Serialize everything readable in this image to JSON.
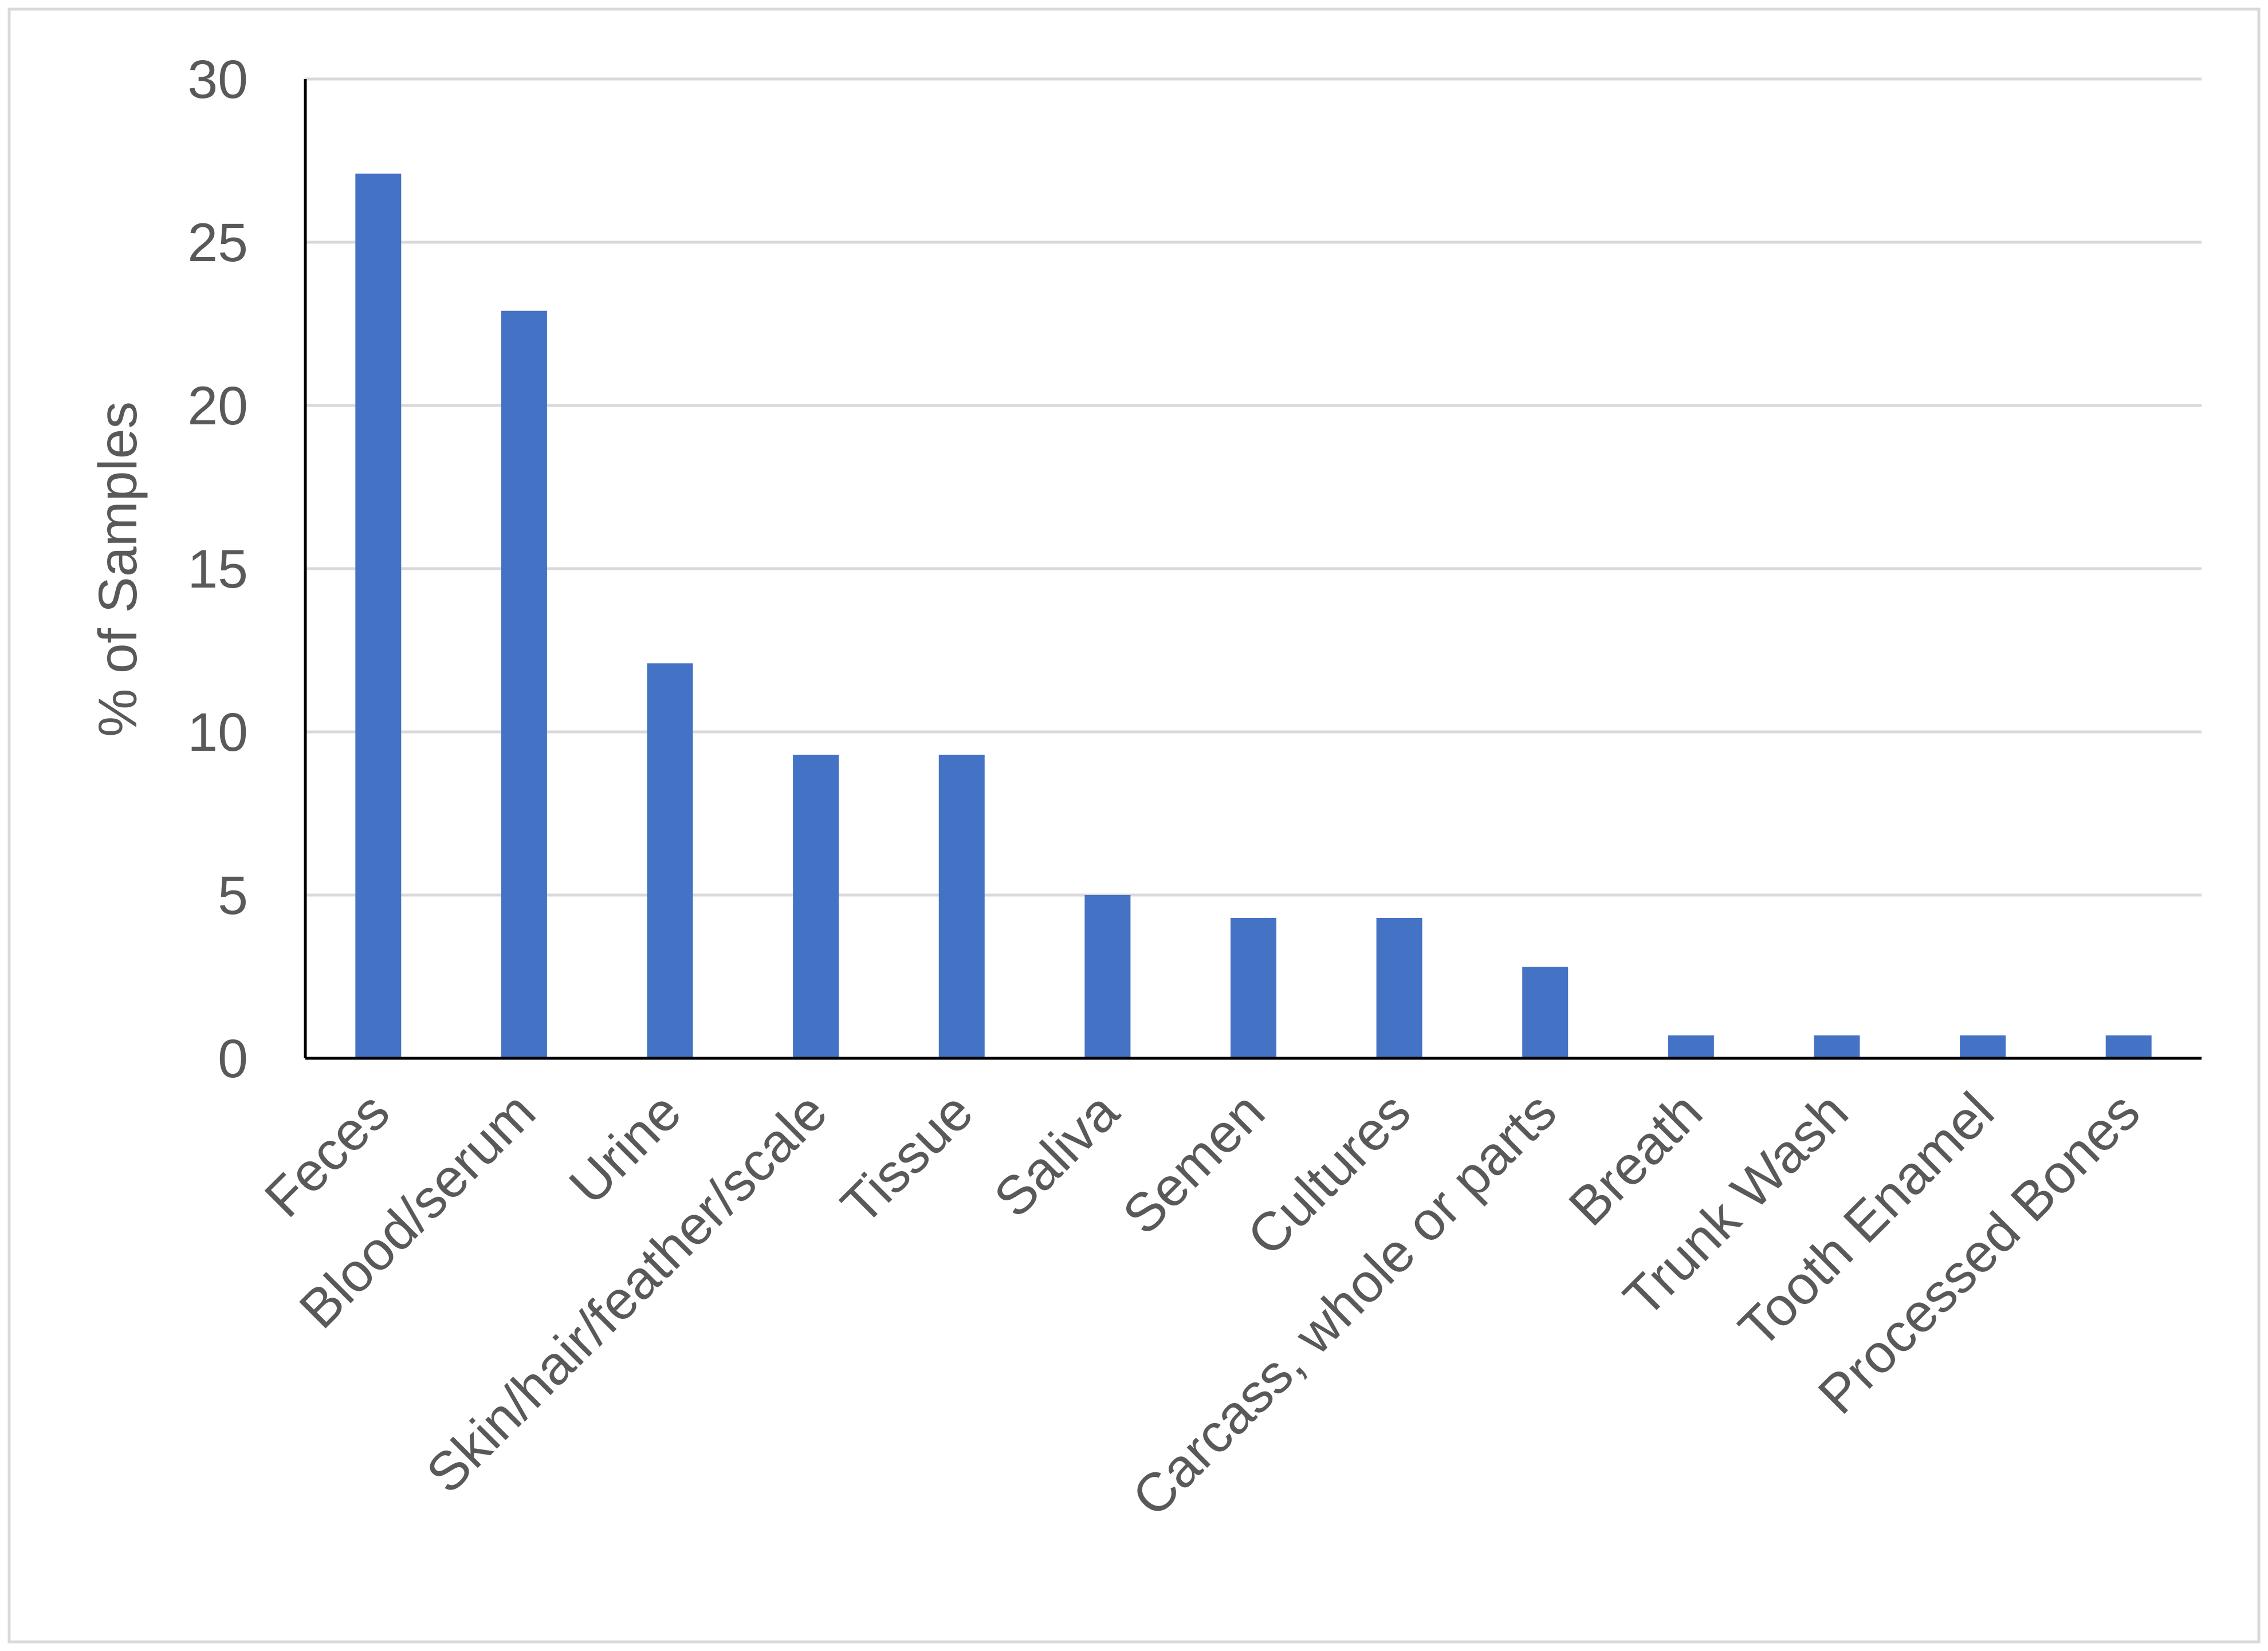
{
  "chart_data": {
    "type": "bar",
    "title": "",
    "xlabel": "",
    "ylabel": "% of Samples",
    "ylim": [
      0,
      30
    ],
    "yticks": [
      0,
      5,
      10,
      15,
      20,
      25,
      30
    ],
    "grid": true,
    "legend": "none",
    "categories": [
      "Feces",
      "Blood/serum",
      "Urine",
      "Skin/hair/feather/scale",
      "Tissue",
      "Saliva",
      "Semen",
      "Cultures",
      "Carcass, whole or parts",
      "Breath",
      "Trunk Wash",
      "Tooth Enamel",
      "Processed Bones"
    ],
    "values": [
      27.1,
      22.9,
      12.1,
      9.3,
      9.3,
      5.0,
      4.3,
      4.3,
      2.8,
      0.7,
      0.7,
      0.7,
      0.7
    ],
    "colors": {
      "bar": "#4472C4",
      "text": "#595959",
      "grid": "#D9D9D9",
      "axis": "#000000",
      "frame": "#D9D9D9"
    }
  }
}
